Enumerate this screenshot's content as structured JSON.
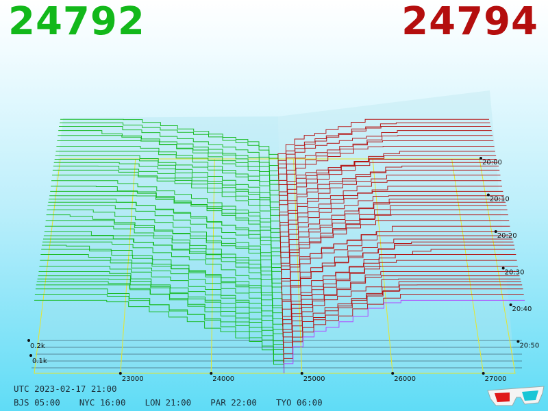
{
  "bid_price": "24792",
  "ask_price": "24794",
  "colors": {
    "bid": "#12b81a",
    "ask": "#b40e0e",
    "grid": "#e6e62a",
    "latest_ask": "#b23cff",
    "base_lines": "#2a3a48"
  },
  "footer": {
    "utc": "UTC 2023-02-17 21:00",
    "zones": [
      "BJS 05:00",
      "NYC 16:00",
      "LON 21:00",
      "PAR 22:00",
      "TYO 06:00"
    ]
  },
  "icon": "3d-glasses-icon",
  "chart_data": {
    "type": "area",
    "x_ticks": [
      23000,
      24000,
      25000,
      26000,
      27000
    ],
    "x_tick_labels": [
      "23000",
      "24000",
      "25000",
      "26000",
      "27000"
    ],
    "time_ticks": [
      "20:00",
      "20:10",
      "20:20",
      "20:30",
      "20:40",
      "20:50"
    ],
    "depth_ticks": [
      "0.2k",
      "0.1k"
    ],
    "xlim": [
      22050,
      27350
    ],
    "series": [
      {
        "values": [
          24792,
          24794
        ]
      }
    ]
  }
}
